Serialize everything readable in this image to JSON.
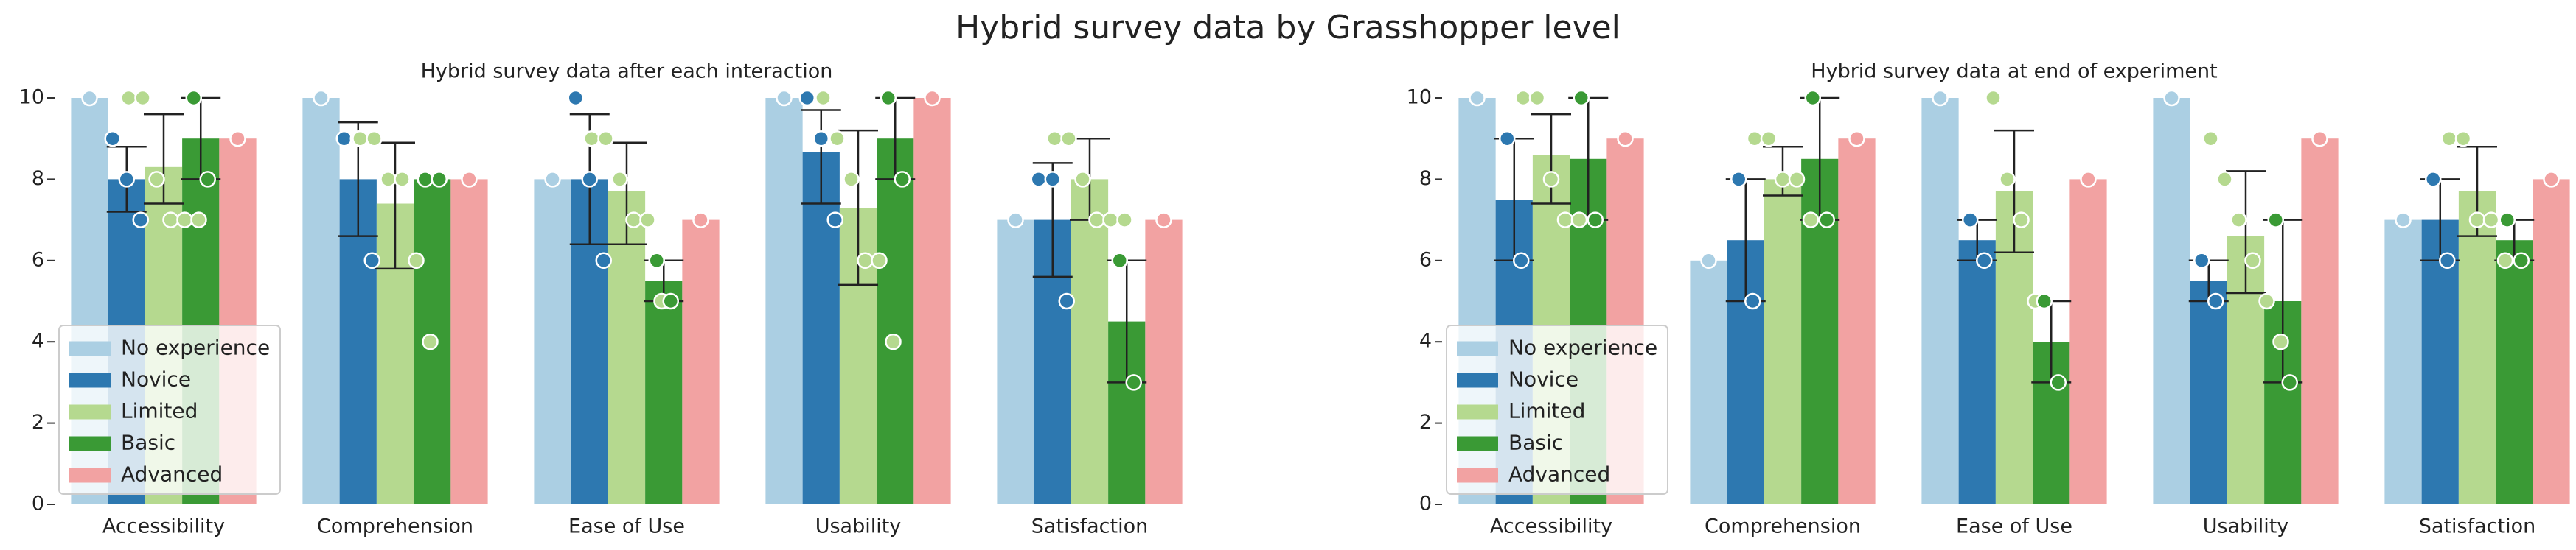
{
  "title": "Hybrid survey data by Grasshopper level",
  "chart_data": [
    {
      "type": "bar",
      "title": "Hybrid survey data after each interaction",
      "categories": [
        "Accessibility",
        "Comprehension",
        "Ease of Use",
        "Usability",
        "Satisfaction"
      ],
      "ylim": [
        0,
        10
      ],
      "yticks": [
        0,
        2,
        4,
        6,
        8,
        10
      ],
      "legend": "lower left",
      "series": [
        {
          "name": "No experience",
          "color": "#abcfe3",
          "values": [
            10,
            10,
            8,
            10,
            7
          ],
          "errors": [
            null,
            null,
            null,
            null,
            null
          ],
          "points": [
            [
              10
            ],
            [
              10
            ],
            [
              8
            ],
            [
              10
            ],
            [
              7
            ]
          ]
        },
        {
          "name": "Novice",
          "color": "#2d78b0",
          "values": [
            8,
            8,
            8,
            8.67,
            7
          ],
          "errors": [
            [
              7.2,
              8.8
            ],
            [
              6.6,
              9.4
            ],
            [
              6.4,
              9.6
            ],
            [
              7.4,
              9.7
            ],
            [
              5.6,
              8.4
            ]
          ],
          "points": [
            [
              9,
              8,
              7
            ],
            [
              9,
              9,
              6
            ],
            [
              10,
              8,
              6
            ],
            [
              10,
              9,
              7
            ],
            [
              8,
              8,
              5
            ]
          ]
        },
        {
          "name": "Limited",
          "color": "#b5d98f",
          "values": [
            8.3,
            7.4,
            7.7,
            7.3,
            8
          ],
          "errors": [
            [
              7.4,
              9.6
            ],
            [
              5.8,
              8.9
            ],
            [
              6.4,
              8.9
            ],
            [
              5.4,
              9.2
            ],
            [
              7,
              9
            ]
          ],
          "points": [
            [
              10,
              10,
              8,
              7,
              7,
              7
            ],
            [
              9,
              9,
              8,
              8,
              6,
              4
            ],
            [
              9,
              9,
              8,
              7,
              7,
              5
            ],
            [
              10,
              9,
              8,
              6,
              6,
              4
            ],
            [
              9,
              9,
              8,
              7,
              7,
              7
            ]
          ]
        },
        {
          "name": "Basic",
          "color": "#3a9a35",
          "values": [
            9,
            8,
            5.5,
            9,
            4.5
          ],
          "errors": [
            [
              8,
              10
            ],
            null,
            [
              5,
              6
            ],
            [
              8,
              10
            ],
            [
              3,
              6
            ]
          ],
          "points": [
            [
              10,
              8
            ],
            [
              8,
              8
            ],
            [
              6,
              5
            ],
            [
              10,
              8
            ],
            [
              6,
              3
            ]
          ]
        },
        {
          "name": "Advanced",
          "color": "#f2a2a2",
          "values": [
            9,
            8,
            7,
            10,
            7
          ],
          "errors": [
            null,
            null,
            null,
            null,
            null
          ],
          "points": [
            [
              9
            ],
            [
              8
            ],
            [
              7
            ],
            [
              10
            ],
            [
              7
            ]
          ]
        }
      ]
    },
    {
      "type": "bar",
      "title": "Hybrid survey data at end of experiment",
      "categories": [
        "Accessibility",
        "Comprehension",
        "Ease of Use",
        "Usability",
        "Satisfaction"
      ],
      "ylim": [
        0,
        10
      ],
      "yticks": [
        0,
        2,
        4,
        6,
        8,
        10
      ],
      "legend": "lower left",
      "series": [
        {
          "name": "No experience",
          "color": "#abcfe3",
          "values": [
            10,
            6,
            10,
            10,
            7
          ],
          "errors": [
            null,
            null,
            null,
            null,
            null
          ],
          "points": [
            [
              10
            ],
            [
              6
            ],
            [
              10
            ],
            [
              10
            ],
            [
              7
            ]
          ]
        },
        {
          "name": "Novice",
          "color": "#2d78b0",
          "values": [
            7.5,
            6.5,
            6.5,
            5.5,
            7
          ],
          "errors": [
            [
              6,
              9
            ],
            [
              5,
              8
            ],
            [
              6,
              7
            ],
            [
              5,
              6
            ],
            [
              6,
              8
            ]
          ],
          "points": [
            [
              9,
              6
            ],
            [
              8,
              5
            ],
            [
              7,
              6
            ],
            [
              6,
              5
            ],
            [
              8,
              6
            ]
          ]
        },
        {
          "name": "Limited",
          "color": "#b5d98f",
          "values": [
            8.6,
            8,
            7.7,
            6.6,
            7.7
          ],
          "errors": [
            [
              7.4,
              9.6
            ],
            [
              7.6,
              8.8
            ],
            [
              6.2,
              9.2
            ],
            [
              5.2,
              8.2
            ],
            [
              6.6,
              8.8
            ]
          ],
          "points": [
            [
              10,
              10,
              8,
              7,
              7
            ],
            [
              9,
              9,
              8,
              8,
              7
            ],
            [
              10,
              8,
              7,
              5
            ],
            [
              9,
              8,
              7,
              6,
              5,
              4
            ],
            [
              9,
              9,
              7,
              7,
              6
            ]
          ]
        },
        {
          "name": "Basic",
          "color": "#3a9a35",
          "values": [
            8.5,
            8.5,
            4,
            5,
            6.5
          ],
          "errors": [
            [
              7,
              10
            ],
            [
              7,
              10
            ],
            [
              3,
              5
            ],
            [
              3,
              7
            ],
            [
              6,
              7
            ]
          ],
          "points": [
            [
              10,
              7
            ],
            [
              10,
              7
            ],
            [
              5,
              3
            ],
            [
              7,
              3
            ],
            [
              7,
              6
            ]
          ]
        },
        {
          "name": "Advanced",
          "color": "#f2a2a2",
          "values": [
            9,
            9,
            8,
            9,
            8
          ],
          "errors": [
            null,
            null,
            null,
            null,
            null
          ],
          "points": [
            [
              9
            ],
            [
              9
            ],
            [
              8
            ],
            [
              9
            ],
            [
              8
            ]
          ]
        }
      ]
    }
  ]
}
